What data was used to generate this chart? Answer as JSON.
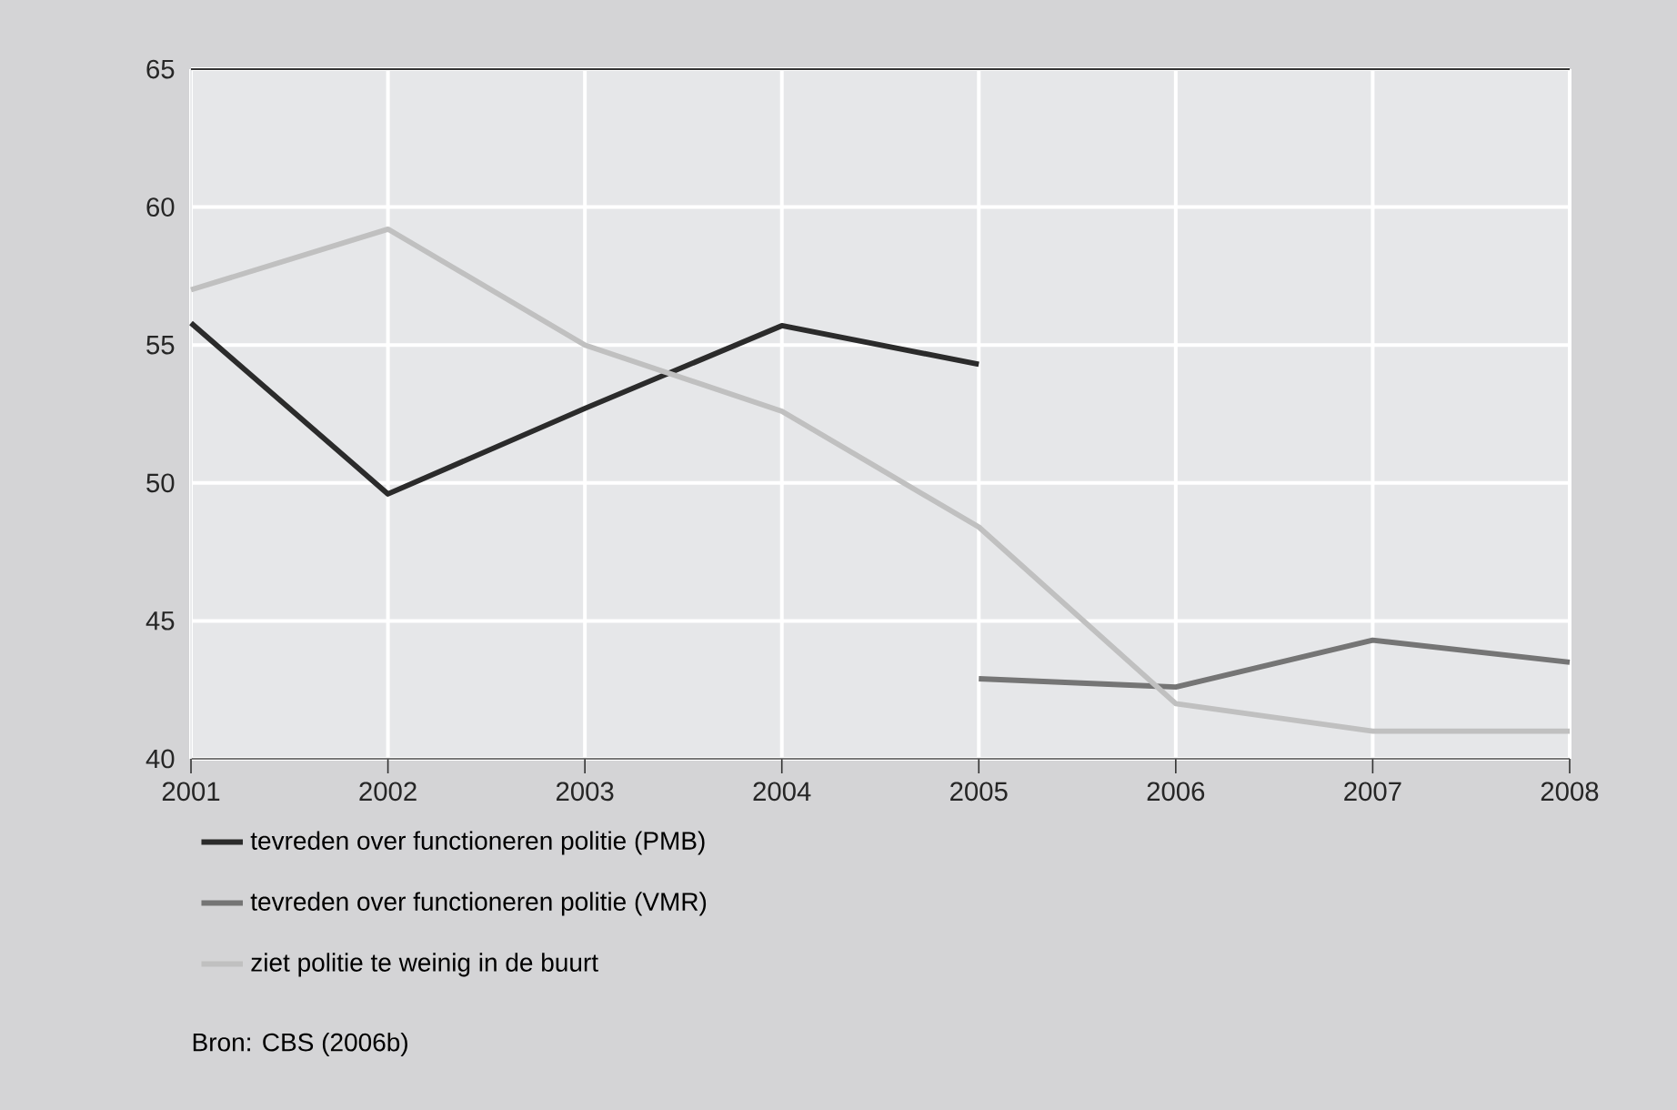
{
  "chart_data": {
    "type": "line",
    "x": [
      2001,
      2002,
      2003,
      2004,
      2005,
      2006,
      2007,
      2008
    ],
    "series": [
      {
        "name": "tevreden over functioneren politie (PMB)",
        "color": "#2b2b2b",
        "values": [
          55.8,
          49.6,
          52.7,
          55.7,
          54.3,
          null,
          null,
          null
        ]
      },
      {
        "name": "tevreden over functioneren politie (VMR)",
        "color": "#757575",
        "values": [
          null,
          null,
          null,
          null,
          42.9,
          42.6,
          44.3,
          43.5
        ]
      },
      {
        "name": "ziet politie te weinig in de buurt",
        "color": "#c0c0c0",
        "values": [
          57.0,
          59.2,
          55.0,
          52.6,
          48.4,
          42.0,
          41.0,
          41.0
        ]
      }
    ],
    "xlim": [
      2001,
      2008
    ],
    "xticks": [
      2001,
      2002,
      2003,
      2004,
      2005,
      2006,
      2007,
      2008
    ],
    "ylim": [
      40,
      65
    ],
    "yticks": [
      40,
      45,
      50,
      55,
      60,
      65
    ],
    "grid": true,
    "legend": "bottom",
    "marker": "none",
    "line_style": "solid",
    "annotations": [
      "Bron: CBS (2006b)"
    ]
  }
}
